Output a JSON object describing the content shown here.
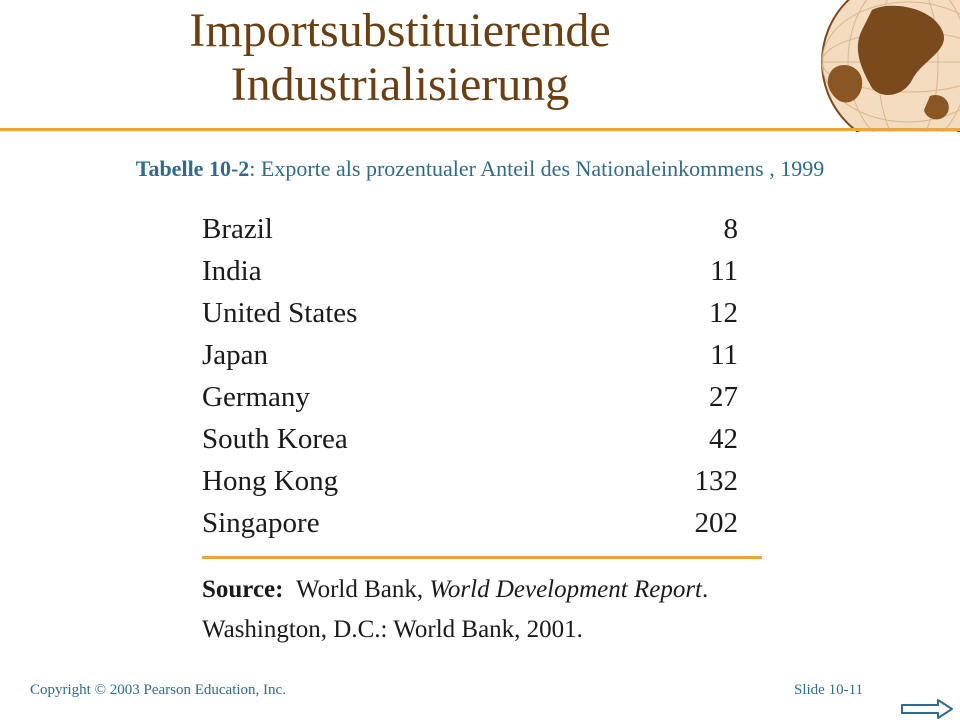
{
  "slide": {
    "title_line1": "Importsubstituierende",
    "title_line2": "Industrialisierung",
    "caption_label": "Tabelle 10-2",
    "caption_text": ": Exporte als prozentualer Anteil des Nationaleinkommens , 1999",
    "table": [
      {
        "country": "Brazil",
        "value": "8"
      },
      {
        "country": "India",
        "value": "11"
      },
      {
        "country": "United States",
        "value": "12"
      },
      {
        "country": "Japan",
        "value": "11"
      },
      {
        "country": "Germany",
        "value": "27"
      },
      {
        "country": "South Korea",
        "value": "42"
      },
      {
        "country": "Hong Kong",
        "value": "132"
      },
      {
        "country": "Singapore",
        "value": "202"
      }
    ],
    "source_label": "Source:",
    "source_pre": "World Bank, ",
    "source_title": "World Development Report",
    "source_post": ".",
    "source_line2": "Washington, D.C.: World Bank, 2001.",
    "footer_left": "Copyright © 2003 Pearson Education, Inc.",
    "footer_right": "Slide 10-11",
    "icons": {
      "globe": "globe-icon",
      "next": "next-arrow-icon"
    },
    "colors": {
      "title": "#6b3f12",
      "accent": "#f0a13a",
      "caption": "#2f6b8a"
    }
  }
}
